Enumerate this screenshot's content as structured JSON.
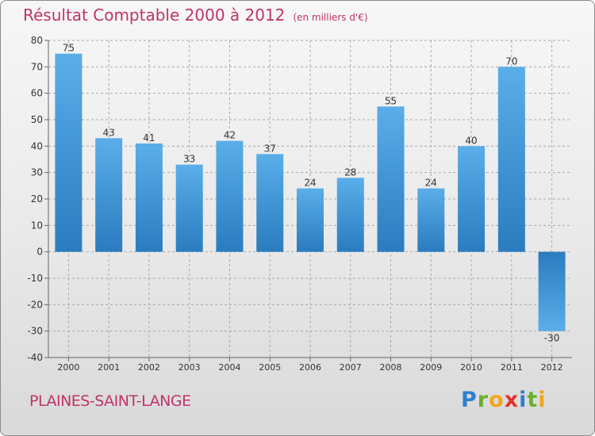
{
  "title": "Résultat Comptable 2000 à 2012",
  "subtitle": "(en milliers d'€)",
  "commune": "PLAINES-SAINT-LANGE",
  "logo": {
    "letters": [
      {
        "ch": "P",
        "color": "#2f7fcf"
      },
      {
        "ch": "r",
        "color": "#6ab02d"
      },
      {
        "ch": "o",
        "color": "#f2a51c"
      },
      {
        "ch": "x",
        "color": "#e2332c"
      },
      {
        "ch": "i",
        "color": "#2f7fcf"
      },
      {
        "ch": "t",
        "color": "#6ab02d"
      },
      {
        "ch": "i",
        "color": "#f2a51c"
      }
    ]
  },
  "colors": {
    "title": "#c0336a",
    "bar_light": "#5aaee9",
    "bar_dark": "#2a7cbf",
    "grid": "#a8a8a8"
  },
  "chart_data": {
    "type": "bar",
    "title": "Résultat Comptable 2000 à 2012",
    "ylabel": "en milliers d'€",
    "categories": [
      "2000",
      "2001",
      "2002",
      "2003",
      "2004",
      "2005",
      "2006",
      "2007",
      "2008",
      "2009",
      "2010",
      "2011",
      "2012"
    ],
    "values": [
      75,
      43,
      41,
      33,
      42,
      37,
      24,
      28,
      55,
      24,
      40,
      70,
      -30
    ],
    "ylim": [
      -40,
      80
    ],
    "yticks": [
      80,
      70,
      60,
      50,
      40,
      30,
      20,
      10,
      0,
      -10,
      -20,
      -30,
      -40
    ],
    "grid": "horizontal dashed"
  }
}
